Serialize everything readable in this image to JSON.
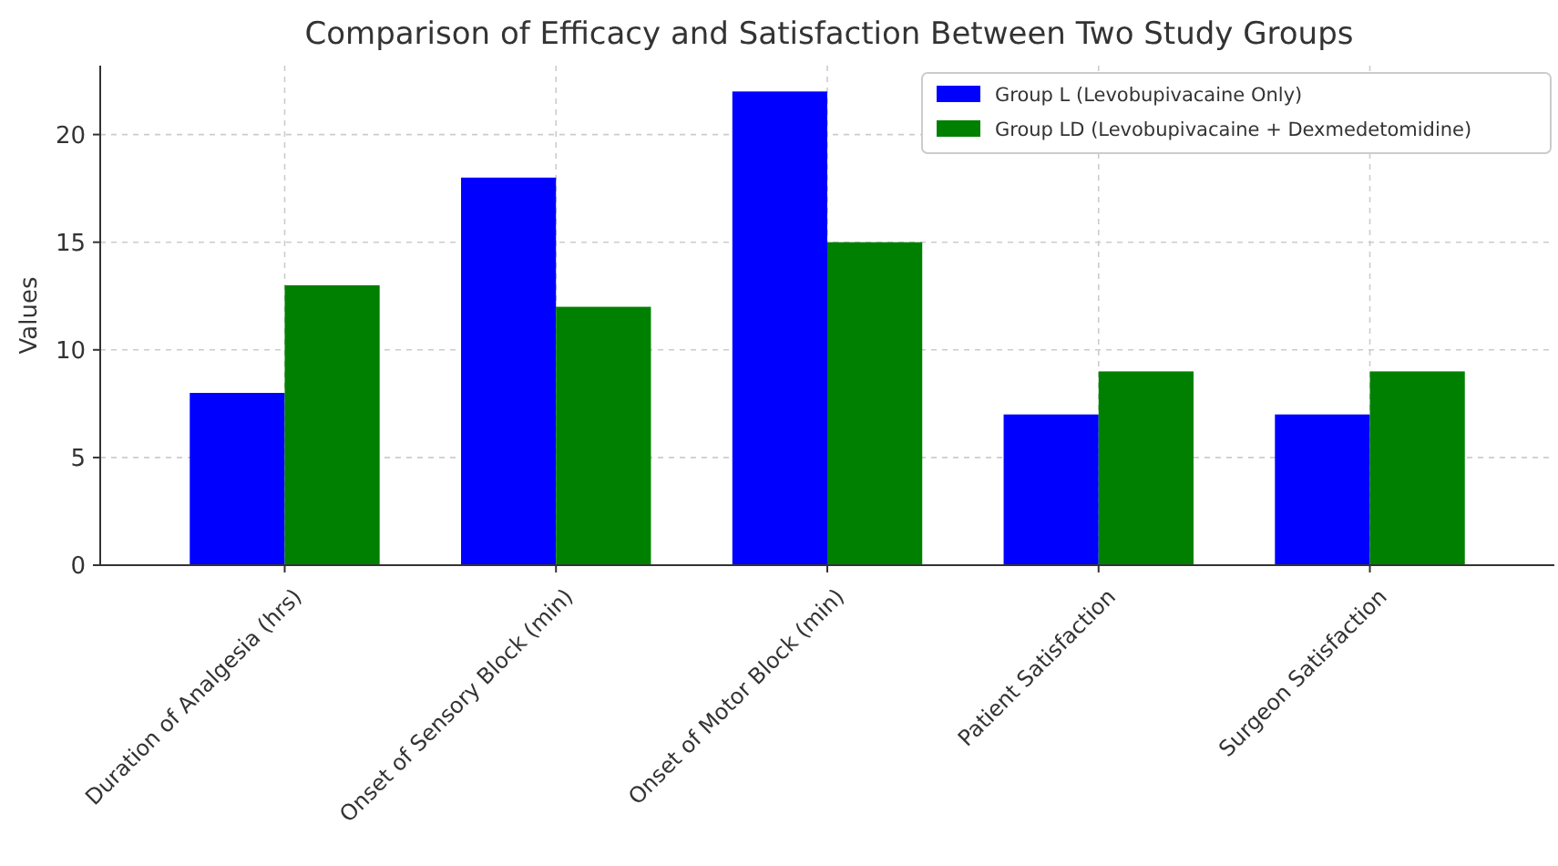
{
  "chart_data": {
    "type": "bar",
    "title": "Comparison of Efficacy and Satisfaction Between Two Study Groups",
    "ylabel": "Values",
    "categories": [
      "Duration of Analgesia (hrs)",
      "Onset of Sensory Block (min)",
      "Onset of Motor Block (min)",
      "Patient Satisfaction",
      "Surgeon Satisfaction"
    ],
    "series": [
      {
        "name": "Group L (Levobupivacaine Only)",
        "color": "#0000ff",
        "values": [
          8,
          18,
          22,
          7,
          7
        ]
      },
      {
        "name": "Group LD (Levobupivacaine + Dexmedetomidine)",
        "color": "#008000",
        "values": [
          13,
          12,
          15,
          9,
          9
        ]
      }
    ],
    "ylim": [
      0,
      23.2
    ],
    "yticks": [
      0,
      5,
      10,
      15,
      20
    ],
    "grid": true,
    "legend": "top right"
  }
}
